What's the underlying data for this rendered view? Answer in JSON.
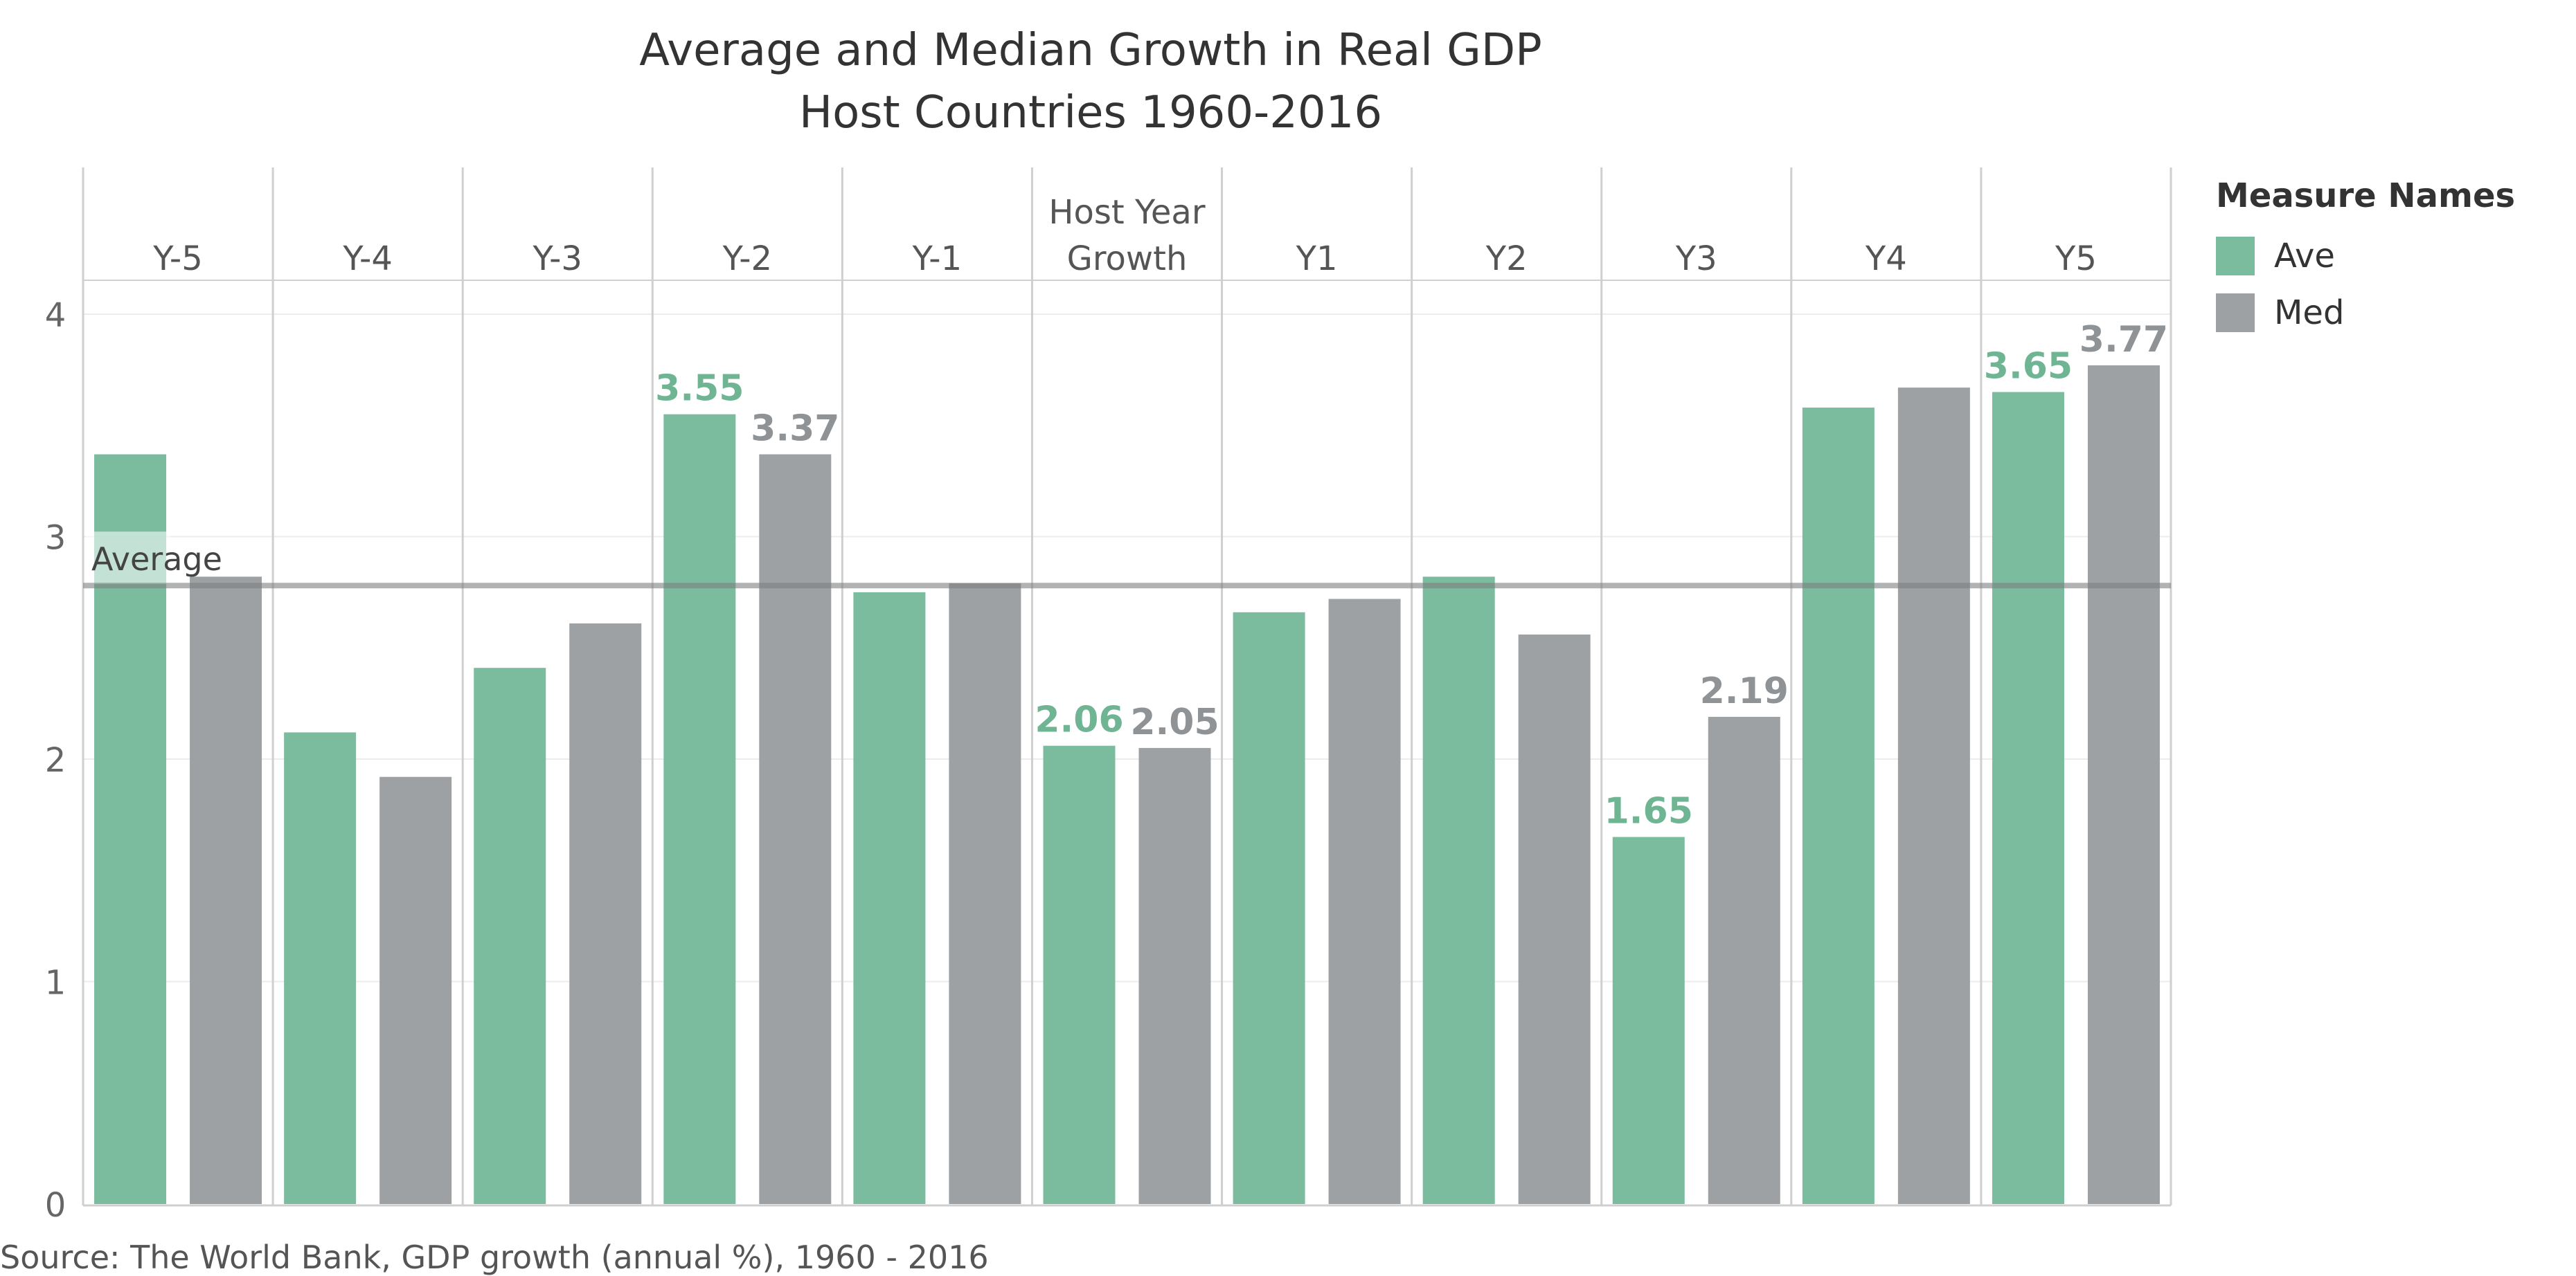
{
  "chart_data": {
    "type": "bar",
    "title": "Average and Median Growth in Real GDP",
    "subtitle": "Host Countries 1960-2016",
    "categories": [
      [
        "Y-5"
      ],
      [
        "Y-4"
      ],
      [
        "Y-3"
      ],
      [
        "Y-2"
      ],
      [
        "Y-1"
      ],
      [
        "Host Year",
        "Growth"
      ],
      [
        "Y1"
      ],
      [
        "Y2"
      ],
      [
        "Y3"
      ],
      [
        "Y4"
      ],
      [
        "Y5"
      ]
    ],
    "series": [
      {
        "name": "Ave",
        "color": "#7bbc9f",
        "values": [
          3.37,
          2.12,
          2.41,
          3.55,
          2.75,
          2.06,
          2.66,
          2.82,
          1.65,
          3.58,
          3.65
        ],
        "labels": [
          "",
          "",
          "",
          "3.55",
          "",
          "2.06",
          "",
          "",
          "1.65",
          "",
          "3.65"
        ]
      },
      {
        "name": "Med",
        "color": "#9da1a3",
        "values": [
          2.82,
          1.92,
          2.61,
          3.37,
          2.79,
          2.05,
          2.72,
          2.56,
          2.19,
          3.67,
          3.77
        ],
        "labels": [
          "",
          "",
          "",
          "3.37",
          "",
          "2.05",
          "",
          "",
          "2.19",
          "",
          "3.77"
        ]
      }
    ],
    "ylim": [
      0,
      4.2
    ],
    "yticks": [
      "0",
      "1",
      "2",
      "3",
      "4"
    ],
    "reference_line": {
      "label": "Average",
      "value": 2.78
    },
    "grid": true,
    "legend": {
      "title": "Measure Names",
      "position": "right"
    }
  },
  "source": "Source: The World Bank, GDP growth (annual %), 1960 - 2016"
}
